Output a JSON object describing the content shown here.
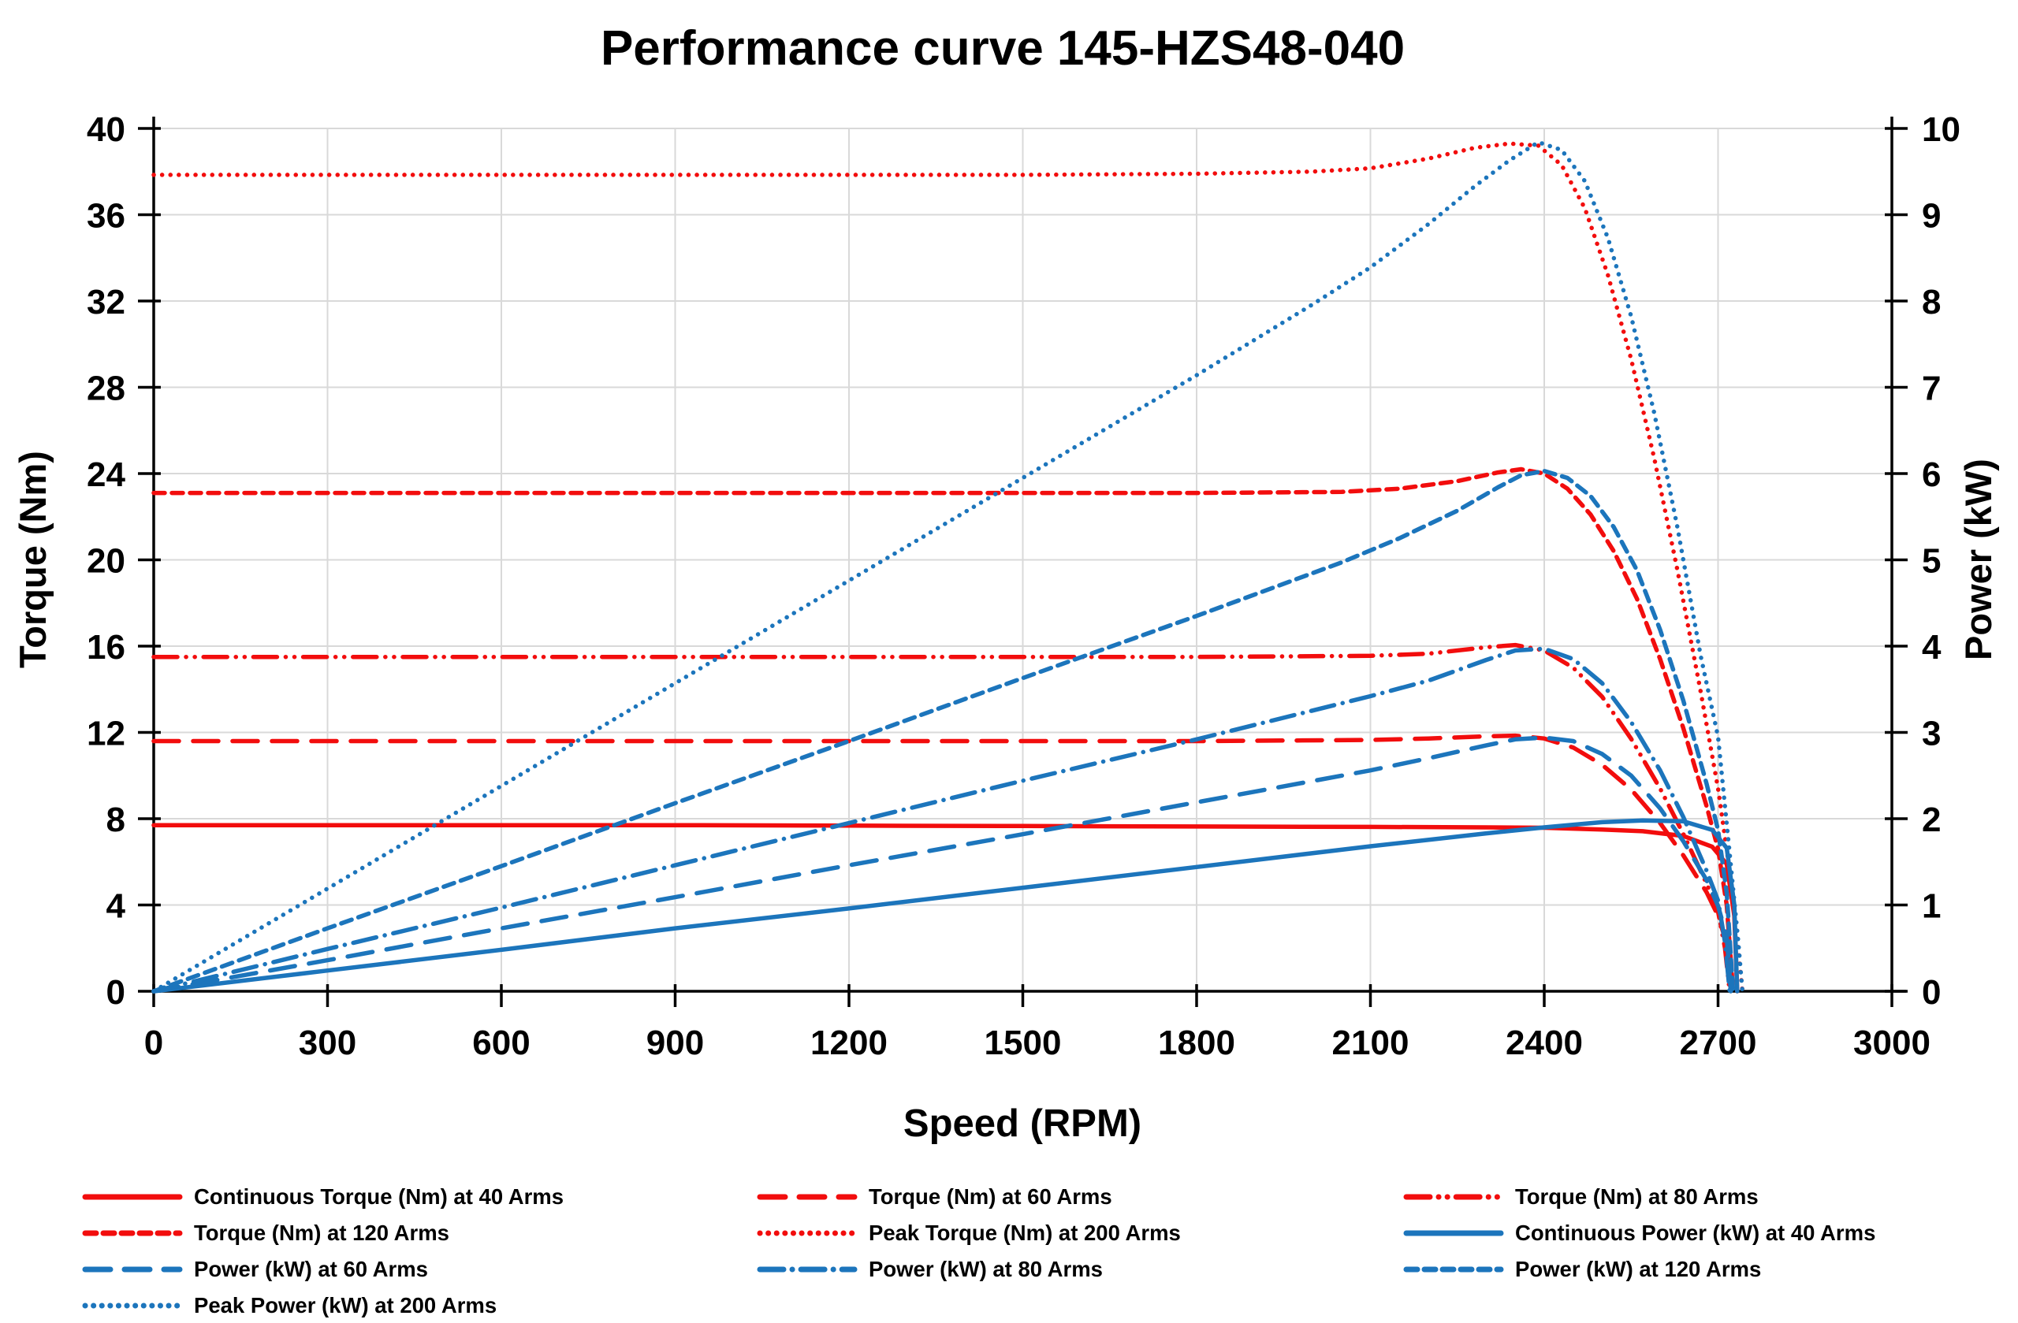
{
  "title": "Performance curve 145-HZS48-040",
  "colors": {
    "red": "#f20d0d",
    "blue": "#1c75bc",
    "grid": "#d9d9d9",
    "axis": "#000000",
    "text": "#000000",
    "background": "#ffffff"
  },
  "chart_data": {
    "type": "line",
    "title": "Performance curve 145-HZS48-040",
    "xlabel": "Speed (RPM)",
    "ylabel_left": "Torque (Nm)",
    "ylabel_right": "Power (kW)",
    "xlim": [
      0,
      3000
    ],
    "ylim_left": [
      0,
      40
    ],
    "ylim_right": [
      0,
      10
    ],
    "x_ticks": [
      0,
      300,
      600,
      900,
      1200,
      1500,
      1800,
      2100,
      2400,
      2700,
      3000
    ],
    "y_left_ticks": [
      0,
      4,
      8,
      12,
      16,
      20,
      24,
      28,
      32,
      36,
      40
    ],
    "y_right_ticks": [
      0,
      1,
      2,
      3,
      4,
      5,
      6,
      7,
      8,
      9,
      10
    ],
    "grid": true,
    "legend_position": "bottom",
    "series": [
      {
        "id": "t40",
        "name": "Continuous Torque (Nm) at 40 Arms",
        "color": "red",
        "axis": "torque",
        "dash": "solid",
        "points": [
          [
            0,
            7.7
          ],
          [
            300,
            7.7
          ],
          [
            600,
            7.7
          ],
          [
            900,
            7.7
          ],
          [
            1200,
            7.68
          ],
          [
            1500,
            7.66
          ],
          [
            1800,
            7.64
          ],
          [
            2100,
            7.62
          ],
          [
            2300,
            7.6
          ],
          [
            2400,
            7.58
          ],
          [
            2500,
            7.5
          ],
          [
            2570,
            7.42
          ],
          [
            2640,
            7.2
          ],
          [
            2690,
            6.7
          ],
          [
            2715,
            5.9
          ],
          [
            2728,
            3.5
          ],
          [
            2733,
            0
          ]
        ]
      },
      {
        "id": "t60",
        "name": "Torque (Nm) at 60 Arms",
        "color": "red",
        "axis": "torque",
        "dash": "long-dash",
        "points": [
          [
            0,
            11.6
          ],
          [
            300,
            11.6
          ],
          [
            600,
            11.6
          ],
          [
            900,
            11.6
          ],
          [
            1200,
            11.6
          ],
          [
            1500,
            11.6
          ],
          [
            1800,
            11.6
          ],
          [
            2100,
            11.65
          ],
          [
            2200,
            11.72
          ],
          [
            2300,
            11.82
          ],
          [
            2350,
            11.85
          ],
          [
            2400,
            11.72
          ],
          [
            2450,
            11.3
          ],
          [
            2500,
            10.5
          ],
          [
            2550,
            9.35
          ],
          [
            2600,
            7.8
          ],
          [
            2640,
            6.3
          ],
          [
            2680,
            4.6
          ],
          [
            2700,
            3.5
          ],
          [
            2715,
            2.2
          ],
          [
            2722,
            0
          ]
        ]
      },
      {
        "id": "t80",
        "name": "Torque (Nm) at 80 Arms",
        "color": "red",
        "axis": "torque",
        "dash": "dash-dot-dot",
        "points": [
          [
            0,
            15.5
          ],
          [
            300,
            15.5
          ],
          [
            600,
            15.5
          ],
          [
            900,
            15.5
          ],
          [
            1200,
            15.5
          ],
          [
            1500,
            15.5
          ],
          [
            1800,
            15.5
          ],
          [
            2100,
            15.55
          ],
          [
            2200,
            15.65
          ],
          [
            2300,
            15.95
          ],
          [
            2350,
            16.05
          ],
          [
            2400,
            15.8
          ],
          [
            2450,
            15.0
          ],
          [
            2500,
            13.65
          ],
          [
            2550,
            11.7
          ],
          [
            2600,
            9.4
          ],
          [
            2640,
            7.3
          ],
          [
            2680,
            5.0
          ],
          [
            2700,
            3.7
          ],
          [
            2712,
            2.0
          ],
          [
            2720,
            0
          ]
        ]
      },
      {
        "id": "t120",
        "name": "Torque (Nm) at 120 Arms",
        "color": "red",
        "axis": "torque",
        "dash": "short-dash",
        "points": [
          [
            0,
            23.1
          ],
          [
            300,
            23.1
          ],
          [
            600,
            23.1
          ],
          [
            900,
            23.1
          ],
          [
            1200,
            23.1
          ],
          [
            1500,
            23.1
          ],
          [
            1800,
            23.1
          ],
          [
            2050,
            23.15
          ],
          [
            2150,
            23.3
          ],
          [
            2250,
            23.65
          ],
          [
            2320,
            24.05
          ],
          [
            2360,
            24.2
          ],
          [
            2400,
            24.0
          ],
          [
            2440,
            23.3
          ],
          [
            2480,
            22.1
          ],
          [
            2520,
            20.4
          ],
          [
            2560,
            18.2
          ],
          [
            2600,
            15.4
          ],
          [
            2640,
            12.2
          ],
          [
            2680,
            8.6
          ],
          [
            2700,
            6.6
          ],
          [
            2715,
            4.0
          ],
          [
            2726,
            0
          ]
        ]
      },
      {
        "id": "t200",
        "name": "Peak Torque (Nm) at 200 Arms",
        "color": "red",
        "axis": "torque",
        "dash": "dot",
        "points": [
          [
            0,
            37.85
          ],
          [
            300,
            37.85
          ],
          [
            600,
            37.85
          ],
          [
            900,
            37.85
          ],
          [
            1200,
            37.85
          ],
          [
            1500,
            37.85
          ],
          [
            1800,
            37.9
          ],
          [
            2000,
            38.0
          ],
          [
            2100,
            38.15
          ],
          [
            2200,
            38.6
          ],
          [
            2280,
            39.1
          ],
          [
            2340,
            39.3
          ],
          [
            2390,
            39.2
          ],
          [
            2430,
            38.3
          ],
          [
            2470,
            36.3
          ],
          [
            2510,
            33.2
          ],
          [
            2550,
            29.3
          ],
          [
            2590,
            24.7
          ],
          [
            2630,
            19.5
          ],
          [
            2670,
            13.9
          ],
          [
            2700,
            9.4
          ],
          [
            2720,
            5.6
          ],
          [
            2735,
            2.0
          ],
          [
            2742,
            0
          ]
        ]
      },
      {
        "id": "p40",
        "name": "Continuous Power (kW) at 40 Arms",
        "color": "blue",
        "axis": "power",
        "dash": "solid",
        "points": [
          [
            0,
            0
          ],
          [
            300,
            0.24
          ],
          [
            600,
            0.48
          ],
          [
            900,
            0.73
          ],
          [
            1200,
            0.96
          ],
          [
            1500,
            1.2
          ],
          [
            1800,
            1.44
          ],
          [
            2100,
            1.68
          ],
          [
            2300,
            1.83
          ],
          [
            2400,
            1.9
          ],
          [
            2500,
            1.96
          ],
          [
            2570,
            1.98
          ],
          [
            2640,
            1.97
          ],
          [
            2690,
            1.87
          ],
          [
            2715,
            1.66
          ],
          [
            2728,
            1.0
          ],
          [
            2733,
            0
          ]
        ]
      },
      {
        "id": "p60",
        "name": "Power (kW) at 60 Arms",
        "color": "blue",
        "axis": "power",
        "dash": "long-dash",
        "points": [
          [
            0,
            0
          ],
          [
            300,
            0.36
          ],
          [
            600,
            0.73
          ],
          [
            900,
            1.09
          ],
          [
            1200,
            1.46
          ],
          [
            1500,
            1.82
          ],
          [
            1800,
            2.19
          ],
          [
            2100,
            2.56
          ],
          [
            2200,
            2.7
          ],
          [
            2300,
            2.85
          ],
          [
            2350,
            2.92
          ],
          [
            2400,
            2.94
          ],
          [
            2450,
            2.9
          ],
          [
            2500,
            2.75
          ],
          [
            2550,
            2.5
          ],
          [
            2600,
            2.12
          ],
          [
            2640,
            1.74
          ],
          [
            2680,
            1.29
          ],
          [
            2700,
            0.99
          ],
          [
            2715,
            0.63
          ],
          [
            2722,
            0
          ]
        ]
      },
      {
        "id": "p80",
        "name": "Power (kW) at 80 Arms",
        "color": "blue",
        "axis": "power",
        "dash": "dash-dot",
        "points": [
          [
            0,
            0
          ],
          [
            300,
            0.49
          ],
          [
            600,
            0.97
          ],
          [
            900,
            1.46
          ],
          [
            1200,
            1.95
          ],
          [
            1500,
            2.44
          ],
          [
            1800,
            2.92
          ],
          [
            2100,
            3.42
          ],
          [
            2200,
            3.6
          ],
          [
            2300,
            3.84
          ],
          [
            2350,
            3.95
          ],
          [
            2400,
            3.97
          ],
          [
            2450,
            3.85
          ],
          [
            2500,
            3.57
          ],
          [
            2550,
            3.12
          ],
          [
            2600,
            2.56
          ],
          [
            2640,
            2.02
          ],
          [
            2680,
            1.4
          ],
          [
            2700,
            1.05
          ],
          [
            2712,
            0.57
          ],
          [
            2720,
            0
          ]
        ]
      },
      {
        "id": "p120",
        "name": "Power (kW) at 120 Arms",
        "color": "blue",
        "axis": "power",
        "dash": "short-dash",
        "points": [
          [
            0,
            0
          ],
          [
            300,
            0.73
          ],
          [
            600,
            1.45
          ],
          [
            900,
            2.18
          ],
          [
            1200,
            2.9
          ],
          [
            1500,
            3.63
          ],
          [
            1800,
            4.35
          ],
          [
            2050,
            4.97
          ],
          [
            2150,
            5.25
          ],
          [
            2250,
            5.57
          ],
          [
            2320,
            5.84
          ],
          [
            2360,
            5.98
          ],
          [
            2400,
            6.03
          ],
          [
            2440,
            5.95
          ],
          [
            2480,
            5.74
          ],
          [
            2520,
            5.38
          ],
          [
            2560,
            4.88
          ],
          [
            2600,
            4.19
          ],
          [
            2640,
            3.37
          ],
          [
            2680,
            2.41
          ],
          [
            2700,
            1.87
          ],
          [
            2715,
            1.14
          ],
          [
            2726,
            0
          ]
        ]
      },
      {
        "id": "p200",
        "name": "Peak Power (kW) at 200 Arms",
        "color": "blue",
        "axis": "power",
        "dash": "dot",
        "points": [
          [
            0,
            0
          ],
          [
            300,
            1.19
          ],
          [
            600,
            2.38
          ],
          [
            900,
            3.57
          ],
          [
            1200,
            4.76
          ],
          [
            1500,
            5.95
          ],
          [
            1800,
            7.14
          ],
          [
            2000,
            7.96
          ],
          [
            2100,
            8.39
          ],
          [
            2200,
            8.89
          ],
          [
            2280,
            9.33
          ],
          [
            2340,
            9.63
          ],
          [
            2390,
            9.84
          ],
          [
            2430,
            9.75
          ],
          [
            2470,
            9.39
          ],
          [
            2510,
            8.73
          ],
          [
            2550,
            7.82
          ],
          [
            2590,
            6.7
          ],
          [
            2630,
            5.37
          ],
          [
            2670,
            3.89
          ],
          [
            2700,
            2.95
          ],
          [
            2720,
            1.6
          ],
          [
            2735,
            0.57
          ],
          [
            2742,
            0
          ]
        ]
      }
    ]
  }
}
